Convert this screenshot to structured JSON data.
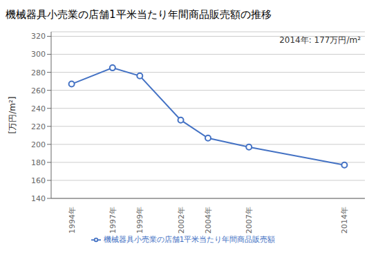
{
  "chart_data": {
    "type": "line",
    "title": "機械器具小売業の店舗1平米当たり年間商品販売額の推移",
    "ylabel": "[万円/m²]",
    "annotation": "2014年: 177万円/m²",
    "x": [
      1994,
      1997,
      1999,
      2002,
      2004,
      2007,
      2014
    ],
    "xlim": [
      1992.5,
      2015.5
    ],
    "xticks": [
      {
        "value": 1994,
        "label": "1994年"
      },
      {
        "value": 1997,
        "label": "1997年"
      },
      {
        "value": 1999,
        "label": "1999年"
      },
      {
        "value": 2002,
        "label": "2002年"
      },
      {
        "value": 2004,
        "label": "2004年"
      },
      {
        "value": 2007,
        "label": "2007年"
      },
      {
        "value": 2014,
        "label": "2014年"
      }
    ],
    "series": [
      {
        "name": "機械器具小売業の店舗1平米当たり年間商品販売額",
        "color": "#4472C4",
        "values": [
          267,
          285,
          276,
          227,
          207,
          197,
          177
        ]
      }
    ],
    "ylim": [
      140,
      325
    ],
    "yticks": [
      140,
      160,
      180,
      200,
      220,
      240,
      260,
      280,
      300,
      320
    ],
    "grid": true,
    "legend": "bottom",
    "marker": "circle"
  }
}
